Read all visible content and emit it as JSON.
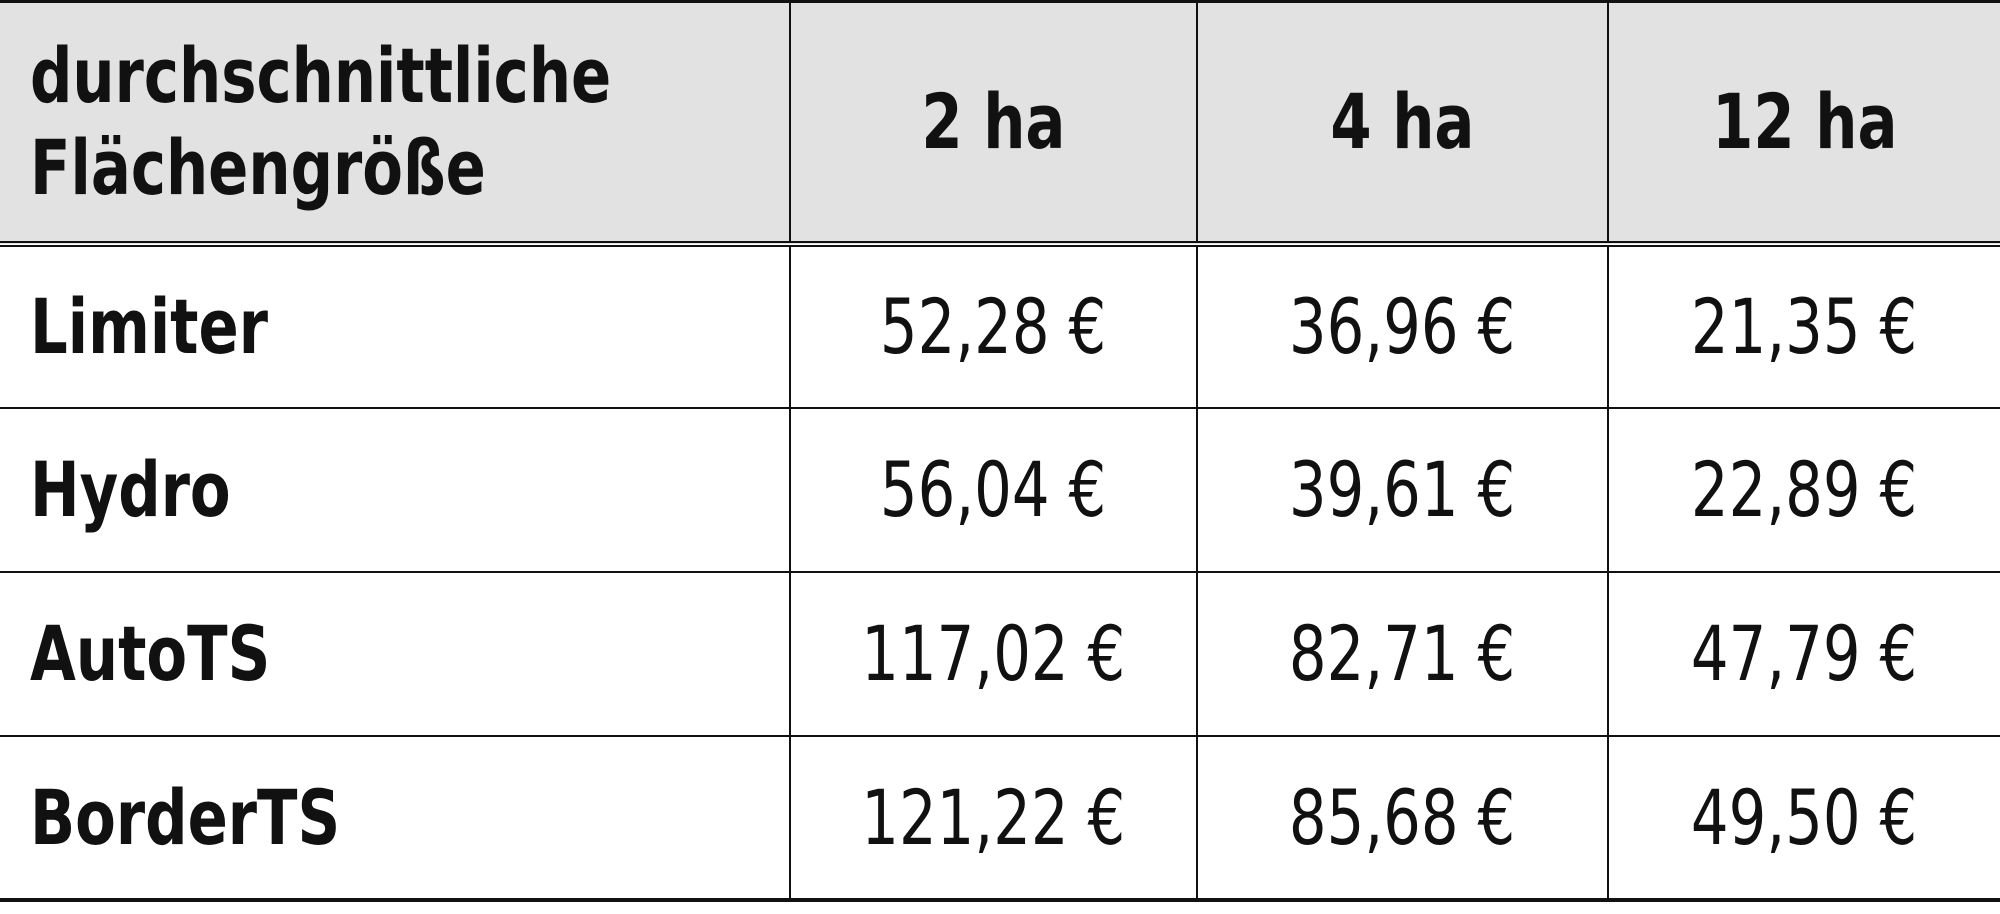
{
  "chart_data": {
    "type": "table",
    "corner_label": "durchschnittliche Flächengröße",
    "columns": [
      "2 ha",
      "4 ha",
      "12 ha"
    ],
    "rows": [
      {
        "label": "Limiter",
        "values": [
          "52,28 €",
          "36,96 €",
          "21,35 €"
        ],
        "numeric": [
          52.28,
          36.96,
          21.35
        ]
      },
      {
        "label": "Hydro",
        "values": [
          "56,04 €",
          "39,61 €",
          "22,89 €"
        ],
        "numeric": [
          56.04,
          39.61,
          22.89
        ]
      },
      {
        "label": "AutoTS",
        "values": [
          "117,02 €",
          "82,71 €",
          "47,79 €"
        ],
        "numeric": [
          117.02,
          82.71,
          47.79
        ]
      },
      {
        "label": "BorderTS",
        "values": [
          "121,22 €",
          "85,68 €",
          "49,50 €"
        ],
        "numeric": [
          121.22,
          85.68,
          49.5
        ]
      }
    ],
    "unit": "€",
    "locale_decimal": ",",
    "colors": {
      "header_background": "#e2e2e2",
      "border": "#111111",
      "text": "#111111",
      "page_background": "#ffffff"
    },
    "layout": {
      "header_row_bold": true,
      "row_labels_bold": true,
      "value_alignment": "center",
      "label_alignment": "left"
    }
  }
}
